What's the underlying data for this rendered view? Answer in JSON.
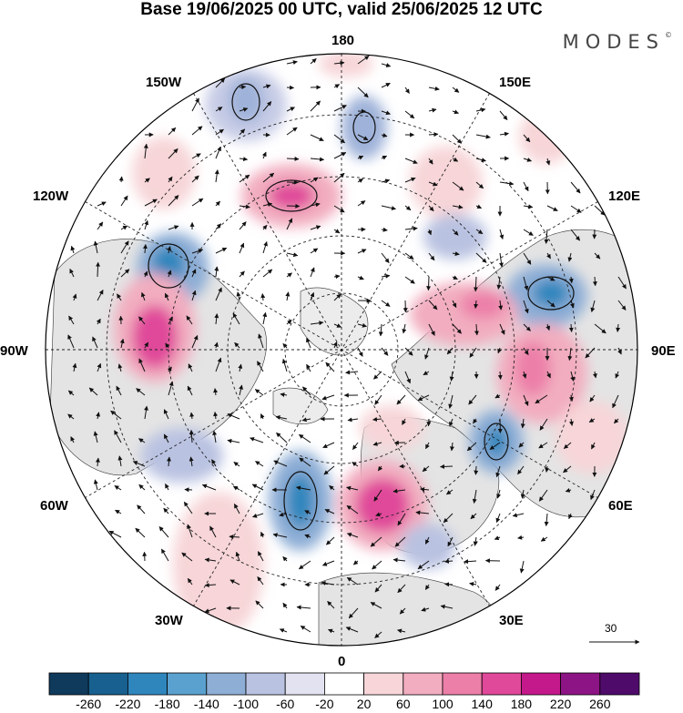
{
  "title": "Base 19/06/2025 00 UTC, valid 25/06/2025 12 UTC",
  "brand": "MODES",
  "brand_mark": "©",
  "map": {
    "projection": "north polar stereographic",
    "longitude_labels": {
      "lon_180": "180",
      "lon_150e": "150E",
      "lon_120e": "120E",
      "lon_90e": "90E",
      "lon_60e": "60E",
      "lon_30e": "30E",
      "lon_0": "0",
      "lon_30w": "30W",
      "lon_60w": "60W",
      "lon_90w": "90W",
      "lon_120w": "120W",
      "lon_150w": "150W"
    },
    "reference_vector_label": "30"
  },
  "colorbar": {
    "ticks": [
      "-260",
      "-220",
      "-180",
      "-140",
      "-100",
      "-60",
      "-20",
      "20",
      "60",
      "100",
      "140",
      "180",
      "220",
      "260"
    ],
    "colors": [
      "#0f3a5c",
      "#18608f",
      "#2f86bd",
      "#5ba1cf",
      "#8eaed6",
      "#b9c2e1",
      "#e2e2f0",
      "#ffffff",
      "#f7d5d8",
      "#f2adc0",
      "#ec7fa8",
      "#e0489a",
      "#c4198a",
      "#8d1484",
      "#4e0b6a"
    ]
  }
}
